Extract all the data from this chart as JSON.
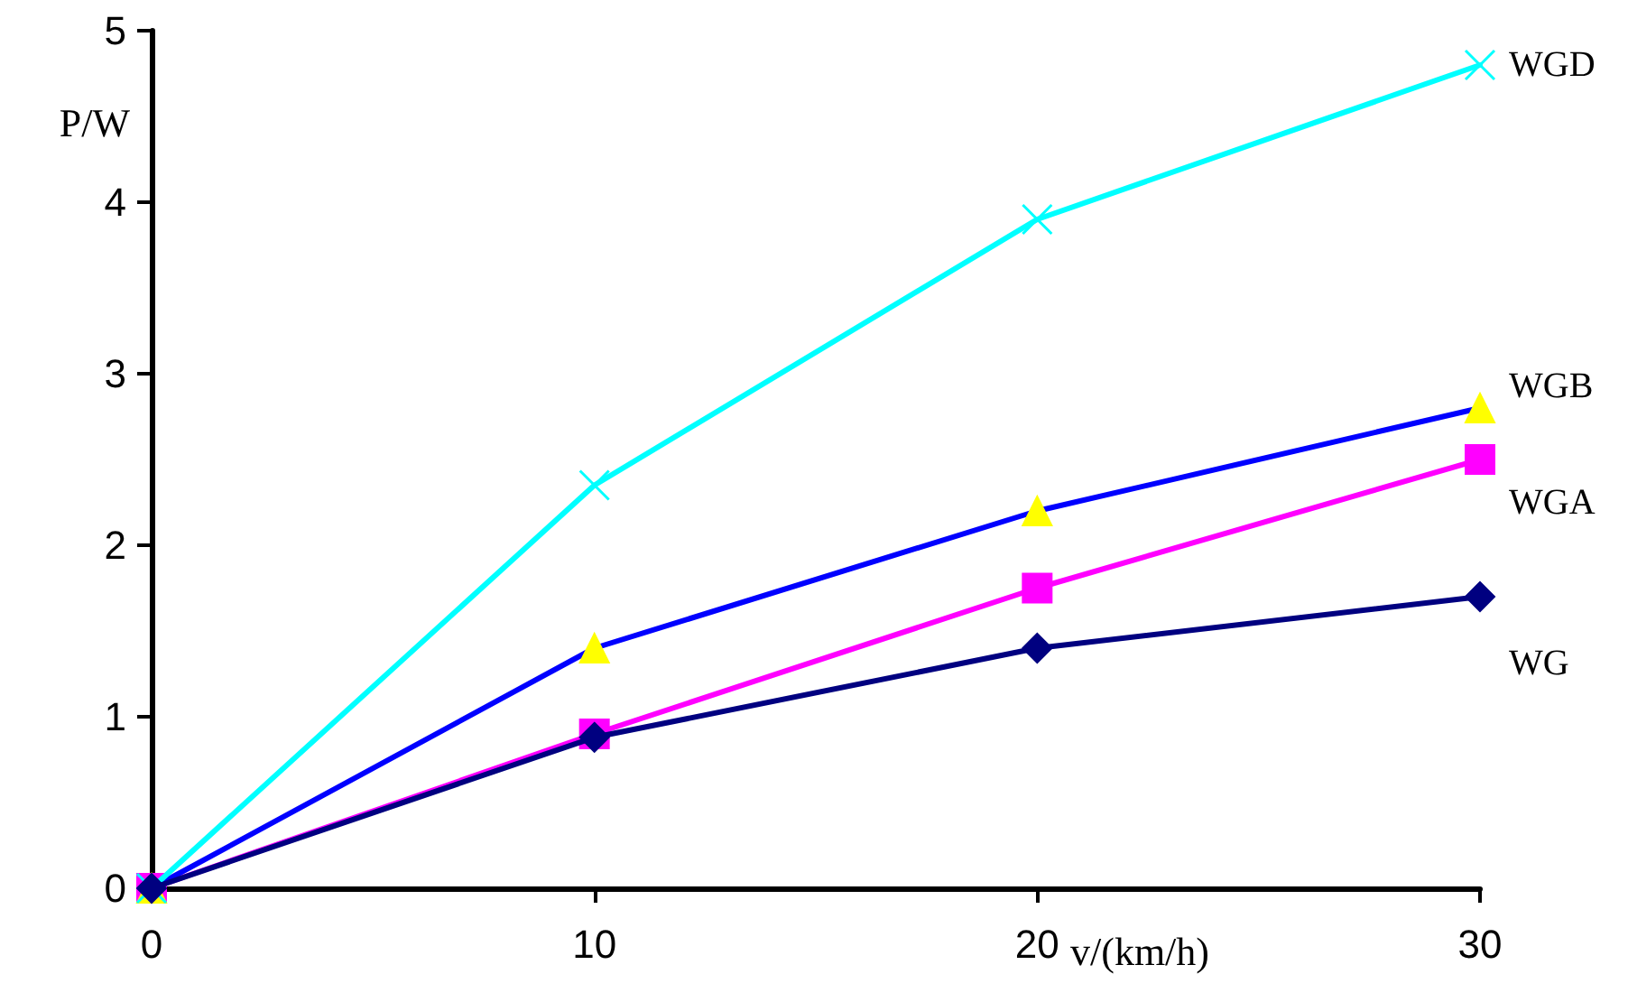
{
  "chart_data": {
    "type": "line",
    "xlabel": "v/(km/h)",
    "ylabel": "P/W",
    "x": [
      0,
      10,
      20,
      30
    ],
    "xlim": [
      0,
      30
    ],
    "xticks": [
      0,
      10,
      20,
      30
    ],
    "ylim": [
      0,
      5
    ],
    "yticks": [
      0,
      1,
      2,
      3,
      4,
      5
    ],
    "grid": false,
    "legend": false,
    "line_style": "solid",
    "series": [
      {
        "name": "WGD",
        "color": "#00ffff",
        "marker": "cross",
        "values": [
          0,
          2.35,
          3.9,
          4.8
        ]
      },
      {
        "name": "WGB",
        "color": "#0000ff",
        "colors": [
          "#ffff00",
          "#ffff00",
          "#ffff00",
          "#ffff00"
        ],
        "marker": "triangle",
        "values": [
          0,
          1.4,
          2.2,
          2.8
        ]
      },
      {
        "name": "WGA",
        "color": "#ff00ff",
        "marker": "square",
        "values": [
          0,
          0.9,
          1.75,
          2.5
        ]
      },
      {
        "name": "WG",
        "color": "#000080",
        "marker": "diamond",
        "values": [
          0,
          0.88,
          1.4,
          1.7
        ]
      }
    ]
  }
}
